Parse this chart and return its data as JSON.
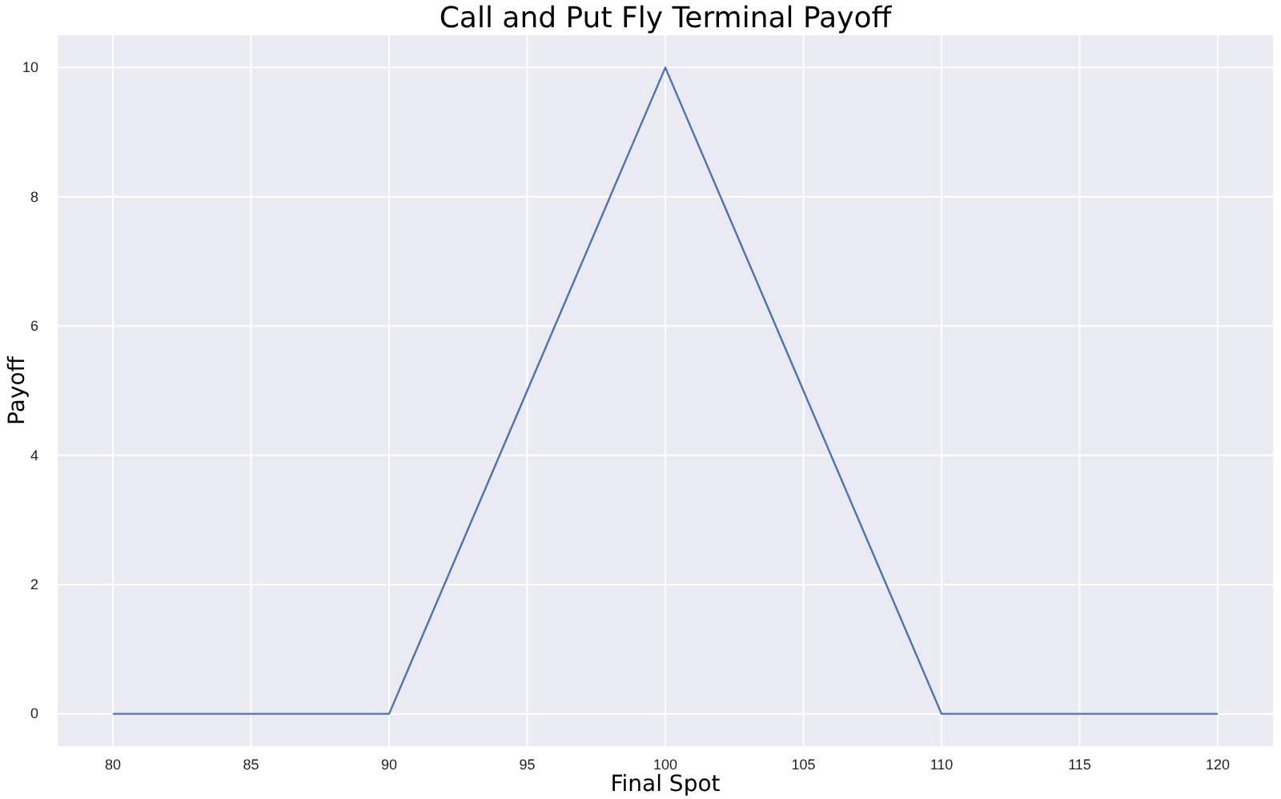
{
  "chart_data": {
    "type": "line",
    "title": "Call and Put Fly Terminal Payoff",
    "xlabel": "Final Spot",
    "ylabel": "Payoff",
    "x": [
      80,
      90,
      100,
      110,
      120
    ],
    "series": [
      {
        "color": "#4c72b0",
        "values": [
          0,
          0,
          10,
          0,
          0
        ]
      }
    ],
    "xlim": [
      78,
      122
    ],
    "ylim": [
      -0.5,
      10.5
    ],
    "xticks": [
      80,
      85,
      90,
      95,
      100,
      105,
      110,
      115,
      120
    ],
    "yticks": [
      0,
      2,
      4,
      6,
      8,
      10
    ],
    "grid": true,
    "marker": "none",
    "line_style": "solid"
  }
}
